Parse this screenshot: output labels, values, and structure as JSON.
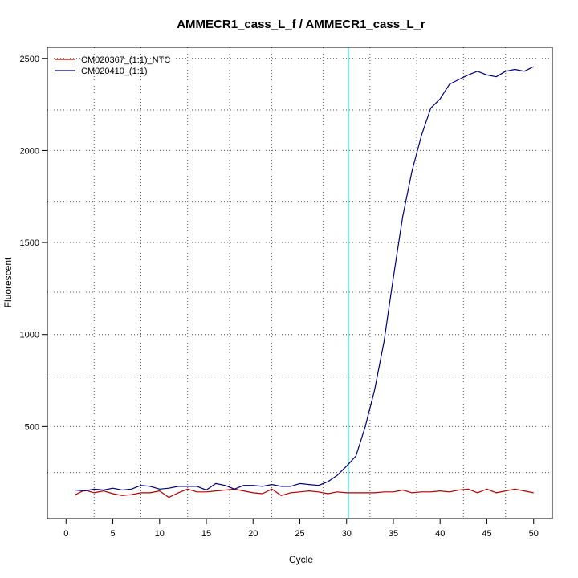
{
  "chart_data": {
    "type": "line",
    "title": "AMMECR1_cass_L_f / AMMECR1_cass_L_r",
    "xlabel": "Cycle",
    "ylabel": "Fluorescent",
    "xlim": [
      -2,
      52
    ],
    "ylim": [
      0,
      2560
    ],
    "x_ticks": [
      0,
      5,
      10,
      15,
      20,
      25,
      30,
      35,
      40,
      45,
      50
    ],
    "y_ticks": [
      500,
      1000,
      1500,
      2000,
      2500
    ],
    "grid": true,
    "grid_style": "dotted",
    "x_grid": [
      3,
      8,
      13,
      17.5,
      22,
      27.5,
      32.5,
      37.5,
      42.5,
      47
    ],
    "y_grid": [
      250,
      500,
      770,
      1000,
      1230,
      1500,
      1720,
      2000,
      2220,
      2500
    ],
    "threshold_x": 30.2,
    "threshold_color": "#00e5e5",
    "legend_position": "top-left",
    "x": [
      1,
      2,
      3,
      4,
      5,
      6,
      7,
      8,
      9,
      10,
      11,
      12,
      13,
      14,
      15,
      16,
      17,
      18,
      19,
      20,
      21,
      22,
      23,
      24,
      25,
      26,
      27,
      28,
      29,
      30,
      31,
      32,
      33,
      34,
      35,
      36,
      37,
      38,
      39,
      40,
      41,
      42,
      43,
      44,
      45,
      46,
      47,
      48,
      49,
      50
    ],
    "series": [
      {
        "name": "CM020367_(1:1)_NTC",
        "color": "#b00000",
        "values": [
          130,
          155,
          140,
          150,
          135,
          125,
          130,
          140,
          140,
          150,
          115,
          140,
          160,
          145,
          145,
          150,
          155,
          160,
          150,
          140,
          135,
          160,
          125,
          140,
          145,
          150,
          145,
          135,
          145,
          140,
          140,
          140,
          140,
          145,
          145,
          155,
          140,
          145,
          145,
          150,
          145,
          155,
          160,
          140,
          160,
          140,
          150,
          160,
          150,
          140
        ]
      },
      {
        "name": "CM020410_(1:1)",
        "color": "#00007a",
        "values": [
          155,
          150,
          160,
          155,
          165,
          155,
          160,
          180,
          175,
          160,
          165,
          175,
          175,
          175,
          155,
          190,
          180,
          160,
          180,
          180,
          175,
          185,
          175,
          175,
          190,
          185,
          180,
          200,
          235,
          285,
          340,
          500,
          700,
          960,
          1310,
          1640,
          1890,
          2080,
          2230,
          2280,
          2360,
          2385,
          2410,
          2430,
          2410,
          2400,
          2430,
          2440,
          2430,
          2455
        ]
      }
    ]
  }
}
